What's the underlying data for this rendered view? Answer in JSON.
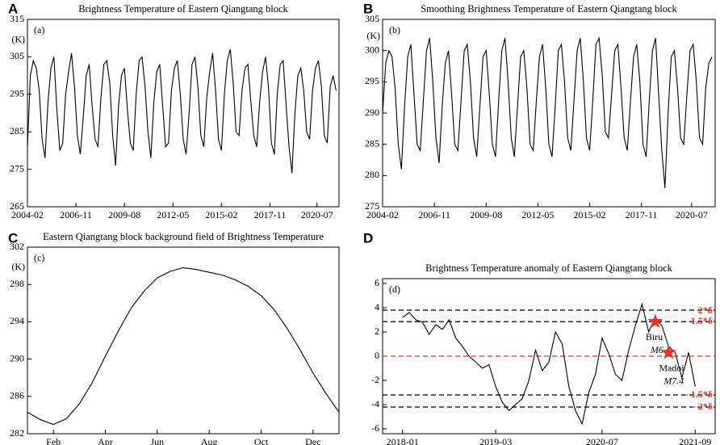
{
  "chart_data": [
    {
      "type": "line",
      "panel": "A",
      "tag": "(a)",
      "title": "Brightness Temperature of Eastern Qiangtang block",
      "y_unit": "(K)",
      "color": "#000000",
      "x": [
        "2004-02",
        "2004-04",
        "2004-06",
        "2004-08",
        "2004-10",
        "2004-12",
        "2005-02",
        "2005-04",
        "2005-06",
        "2005-08",
        "2005-10",
        "2005-12",
        "2006-02",
        "2006-04",
        "2006-06",
        "2006-08",
        "2006-10",
        "2006-12",
        "2007-02",
        "2007-04",
        "2007-06",
        "2007-08",
        "2007-10",
        "2007-12",
        "2008-02",
        "2008-04",
        "2008-06",
        "2008-08",
        "2008-10",
        "2008-12",
        "2009-02",
        "2009-04",
        "2009-06",
        "2009-08",
        "2009-10",
        "2009-12",
        "2010-02",
        "2010-04",
        "2010-06",
        "2010-08",
        "2010-10",
        "2010-12",
        "2011-02",
        "2011-04",
        "2011-06",
        "2011-08",
        "2011-10",
        "2011-12",
        "2012-02",
        "2012-04",
        "2012-06",
        "2012-08",
        "2012-10",
        "2012-12",
        "2013-02",
        "2013-04",
        "2013-06",
        "2013-08",
        "2013-10",
        "2013-12",
        "2014-02",
        "2014-04",
        "2014-06",
        "2014-08",
        "2014-10",
        "2014-12",
        "2015-02",
        "2015-04",
        "2015-06",
        "2015-08",
        "2015-10",
        "2015-12",
        "2016-02",
        "2016-04",
        "2016-06",
        "2016-08",
        "2016-10",
        "2016-12",
        "2017-02",
        "2017-04",
        "2017-06",
        "2017-08",
        "2017-10",
        "2017-12",
        "2018-02",
        "2018-04",
        "2018-06",
        "2018-08",
        "2018-10",
        "2018-12",
        "2019-02",
        "2019-04",
        "2019-06",
        "2019-08",
        "2019-10",
        "2019-12",
        "2020-02",
        "2020-04",
        "2020-06",
        "2020-08",
        "2020-10",
        "2020-12",
        "2021-02",
        "2021-04",
        "2021-06",
        "2021-08"
      ],
      "values": [
        281,
        300,
        304,
        302,
        296,
        283,
        278,
        293,
        302,
        305,
        291,
        280,
        282,
        295,
        301,
        306,
        297,
        284,
        279,
        289,
        300,
        303,
        292,
        283,
        281,
        294,
        303,
        304,
        298,
        284,
        276,
        292,
        300,
        302,
        291,
        282,
        280,
        295,
        304,
        305,
        297,
        285,
        278,
        293,
        301,
        303,
        292,
        281,
        282,
        296,
        302,
        304,
        295,
        283,
        279,
        290,
        303,
        305,
        297,
        284,
        281,
        294,
        301,
        306,
        296,
        283,
        280,
        295,
        304,
        307,
        298,
        285,
        284,
        296,
        302,
        303,
        293,
        284,
        281,
        293,
        301,
        305,
        297,
        282,
        279,
        295,
        303,
        304,
        292,
        281,
        274,
        290,
        300,
        302,
        296,
        285,
        283,
        296,
        302,
        304,
        297,
        284,
        282,
        297,
        300,
        296
      ],
      "xlim": [
        "2004-02",
        "2021-10"
      ],
      "xticks": [
        "2004-02",
        "2006-11",
        "2009-08",
        "2012-05",
        "2015-02",
        "2017-11",
        "2020-07"
      ],
      "ylim": [
        265,
        315
      ],
      "yticks": [
        265,
        275,
        285,
        295,
        305,
        315
      ]
    },
    {
      "type": "line",
      "panel": "B",
      "tag": "(b)",
      "title": "Smoothing Brightness Temperature of Eastern Qiangtang block",
      "y_unit": "(K)",
      "color": "#000000",
      "x": [
        "2004-02",
        "2004-04",
        "2004-06",
        "2004-08",
        "2004-10",
        "2004-12",
        "2005-02",
        "2005-04",
        "2005-06",
        "2005-08",
        "2005-10",
        "2005-12",
        "2006-02",
        "2006-04",
        "2006-06",
        "2006-08",
        "2006-10",
        "2006-12",
        "2007-02",
        "2007-04",
        "2007-06",
        "2007-08",
        "2007-10",
        "2007-12",
        "2008-02",
        "2008-04",
        "2008-06",
        "2008-08",
        "2008-10",
        "2008-12",
        "2009-02",
        "2009-04",
        "2009-06",
        "2009-08",
        "2009-10",
        "2009-12",
        "2010-02",
        "2010-04",
        "2010-06",
        "2010-08",
        "2010-10",
        "2010-12",
        "2011-02",
        "2011-04",
        "2011-06",
        "2011-08",
        "2011-10",
        "2011-12",
        "2012-02",
        "2012-04",
        "2012-06",
        "2012-08",
        "2012-10",
        "2012-12",
        "2013-02",
        "2013-04",
        "2013-06",
        "2013-08",
        "2013-10",
        "2013-12",
        "2014-02",
        "2014-04",
        "2014-06",
        "2014-08",
        "2014-10",
        "2014-12",
        "2015-02",
        "2015-04",
        "2015-06",
        "2015-08",
        "2015-10",
        "2015-12",
        "2016-02",
        "2016-04",
        "2016-06",
        "2016-08",
        "2016-10",
        "2016-12",
        "2017-02",
        "2017-04",
        "2017-06",
        "2017-08",
        "2017-10",
        "2017-12",
        "2018-02",
        "2018-04",
        "2018-06",
        "2018-08",
        "2018-10",
        "2018-12",
        "2019-02",
        "2019-04",
        "2019-06",
        "2019-08",
        "2019-10",
        "2019-12",
        "2020-02",
        "2020-04",
        "2020-06",
        "2020-08",
        "2020-10",
        "2020-12",
        "2021-02",
        "2021-04",
        "2021-06",
        "2021-08"
      ],
      "values": [
        290,
        298,
        300,
        299,
        294,
        285,
        281,
        291,
        299,
        301,
        293,
        285,
        284,
        292,
        300,
        302,
        295,
        286,
        282,
        291,
        298,
        300,
        293,
        285,
        284,
        292,
        300,
        301,
        295,
        286,
        283,
        291,
        299,
        300,
        293,
        285,
        283,
        292,
        300,
        302,
        295,
        286,
        283,
        291,
        299,
        300,
        294,
        285,
        284,
        292,
        299,
        301,
        294,
        285,
        283,
        291,
        300,
        301,
        295,
        286,
        284,
        292,
        300,
        302,
        295,
        286,
        284,
        292,
        301,
        302,
        296,
        287,
        286,
        293,
        300,
        301,
        294,
        286,
        284,
        292,
        299,
        301,
        295,
        285,
        283,
        292,
        300,
        302,
        293,
        284,
        278,
        290,
        299,
        300,
        294,
        286,
        285,
        293,
        300,
        301,
        295,
        286,
        285,
        294,
        298,
        299
      ],
      "xlim": [
        "2004-02",
        "2021-10"
      ],
      "xticks": [
        "2004-02",
        "2006-11",
        "2009-08",
        "2012-05",
        "2015-02",
        "2017-11",
        "2020-07"
      ],
      "ylim": [
        275,
        305
      ],
      "yticks": [
        275,
        280,
        285,
        290,
        295,
        300,
        305
      ]
    },
    {
      "type": "line",
      "panel": "C",
      "tag": "(c)",
      "title": "Eastern Qiangtang block background field of Brightness Temperature",
      "y_unit": "(K)",
      "color": "#000000",
      "categories": [
        null,
        null,
        "Feb",
        null,
        null,
        null,
        "Apr",
        null,
        null,
        null,
        "Jun",
        null,
        null,
        null,
        "Aug",
        null,
        null,
        null,
        "Oct",
        null,
        null,
        null,
        "Dec",
        null,
        null
      ],
      "values": [
        284.3,
        283.5,
        283.0,
        283.6,
        285.2,
        287.5,
        290.3,
        293.0,
        295.5,
        297.3,
        298.7,
        299.4,
        299.8,
        299.6,
        299.3,
        299.0,
        298.5,
        297.8,
        296.8,
        295.3,
        293.3,
        291.0,
        288.5,
        286.3,
        284.3
      ],
      "ylim": [
        282,
        302
      ],
      "yticks": [
        282,
        286,
        290,
        294,
        298,
        302
      ]
    },
    {
      "type": "line",
      "panel": "D",
      "tag": "(d)",
      "title": "Brightness Temperature anomaly of Eastern Qiangtang block",
      "color": "#000000",
      "x": [
        "2018-01",
        "2018-02",
        "2018-03",
        "2018-04",
        "2018-05",
        "2018-06",
        "2018-07",
        "2018-08",
        "2018-09",
        "2018-10",
        "2018-11",
        "2018-12",
        "2019-01",
        "2019-02",
        "2019-03",
        "2019-04",
        "2019-05",
        "2019-06",
        "2019-07",
        "2019-08",
        "2019-09",
        "2019-10",
        "2019-11",
        "2019-12",
        "2020-01",
        "2020-02",
        "2020-03",
        "2020-04",
        "2020-05",
        "2020-06",
        "2020-07",
        "2020-08",
        "2020-09",
        "2020-10",
        "2020-11",
        "2020-12",
        "2021-01",
        "2021-02",
        "2021-03",
        "2021-04",
        "2021-05",
        "2021-06",
        "2021-07",
        "2021-08",
        "2021-09"
      ],
      "values": [
        3.2,
        3.6,
        3.0,
        2.8,
        1.8,
        2.6,
        2.2,
        3.0,
        1.5,
        0.8,
        0.0,
        -0.5,
        -1.0,
        -0.7,
        -2.5,
        -3.8,
        -4.5,
        -4.0,
        -3.5,
        -2.0,
        0.5,
        -1.2,
        -0.5,
        2.0,
        1.0,
        -2.5,
        -4.5,
        -5.6,
        -3.0,
        -1.5,
        1.5,
        0.2,
        -1.5,
        -2.0,
        0.5,
        2.5,
        4.3,
        2.0,
        3.2,
        2.5,
        0.8,
        0.3,
        -1.8,
        0.3,
        -2.5
      ],
      "xlim": [
        "2017-10",
        "2021-12"
      ],
      "xticks": [
        "2018-01",
        "2019-03",
        "2020-07",
        "2021-09"
      ],
      "ylim": [
        -6.4,
        6.4
      ],
      "yticks": [
        -6,
        -4,
        -2,
        0,
        2,
        4,
        6
      ],
      "reference_lines": [
        {
          "label": "2*δ",
          "value": 3.8,
          "color": "#000000"
        },
        {
          "label": "1.5*δ",
          "value": 2.85,
          "color": "#000000"
        },
        {
          "value": 0,
          "color": "#e8332a"
        },
        {
          "label": "- 1.5*δ",
          "value": -3.2,
          "color": "#000000"
        },
        {
          "label": "- 2*δ",
          "value": -4.2,
          "color": "#000000"
        }
      ],
      "events": [
        {
          "label": "Biru",
          "magnitude": "M6.1",
          "x": "2021-03",
          "y": 2.85
        },
        {
          "label": "Madoi",
          "magnitude": "M7.4",
          "x": "2021-05",
          "y": 0.3
        }
      ]
    }
  ]
}
